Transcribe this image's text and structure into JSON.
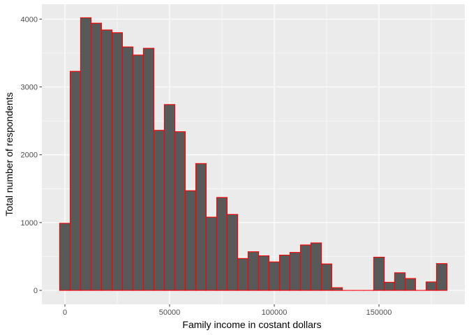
{
  "chart_data": {
    "type": "bar",
    "subtype": "histogram",
    "xlabel": "Family income in costant dollars",
    "ylabel": "Total number of respondents",
    "xlim": [
      -11000,
      191000
    ],
    "ylim": [
      -205,
      4220
    ],
    "x_ticks": [
      0,
      50000,
      100000,
      150000
    ],
    "x_tick_labels": [
      "0",
      "50000",
      "100000",
      "150000"
    ],
    "y_ticks": [
      0,
      1000,
      2000,
      3000,
      4000
    ],
    "y_tick_labels": [
      "0",
      "1000",
      "2000",
      "3000",
      "4000"
    ],
    "grid": true,
    "bin_width": 5000,
    "bins": [
      {
        "x0": -2500,
        "x1": 2500,
        "count": 990
      },
      {
        "x0": 2500,
        "x1": 7500,
        "count": 3230
      },
      {
        "x0": 7500,
        "x1": 12500,
        "count": 4020
      },
      {
        "x0": 12500,
        "x1": 17500,
        "count": 3940
      },
      {
        "x0": 17500,
        "x1": 22500,
        "count": 3840
      },
      {
        "x0": 22500,
        "x1": 27500,
        "count": 3800
      },
      {
        "x0": 27500,
        "x1": 32500,
        "count": 3590
      },
      {
        "x0": 32500,
        "x1": 37500,
        "count": 3470
      },
      {
        "x0": 37500,
        "x1": 42500,
        "count": 3570
      },
      {
        "x0": 42500,
        "x1": 47500,
        "count": 2360
      },
      {
        "x0": 47500,
        "x1": 52500,
        "count": 2740
      },
      {
        "x0": 52500,
        "x1": 57500,
        "count": 2340
      },
      {
        "x0": 57500,
        "x1": 62500,
        "count": 1470
      },
      {
        "x0": 62500,
        "x1": 67500,
        "count": 1870
      },
      {
        "x0": 67500,
        "x1": 72500,
        "count": 1080
      },
      {
        "x0": 72500,
        "x1": 77500,
        "count": 1370
      },
      {
        "x0": 77500,
        "x1": 82500,
        "count": 1120
      },
      {
        "x0": 82500,
        "x1": 87500,
        "count": 470
      },
      {
        "x0": 87500,
        "x1": 92500,
        "count": 570
      },
      {
        "x0": 92500,
        "x1": 97500,
        "count": 510
      },
      {
        "x0": 97500,
        "x1": 102500,
        "count": 420
      },
      {
        "x0": 102500,
        "x1": 107500,
        "count": 520
      },
      {
        "x0": 107500,
        "x1": 112500,
        "count": 560
      },
      {
        "x0": 112500,
        "x1": 117500,
        "count": 670
      },
      {
        "x0": 117500,
        "x1": 122500,
        "count": 700
      },
      {
        "x0": 122500,
        "x1": 127500,
        "count": 390
      },
      {
        "x0": 127500,
        "x1": 132500,
        "count": 40
      },
      {
        "x0": 132500,
        "x1": 137500,
        "count": 0
      },
      {
        "x0": 137500,
        "x1": 142500,
        "count": 0
      },
      {
        "x0": 142500,
        "x1": 147500,
        "count": 0
      },
      {
        "x0": 147500,
        "x1": 152500,
        "count": 490
      },
      {
        "x0": 152500,
        "x1": 157500,
        "count": 120
      },
      {
        "x0": 157500,
        "x1": 162500,
        "count": 260
      },
      {
        "x0": 162500,
        "x1": 167500,
        "count": 175
      },
      {
        "x0": 167500,
        "x1": 172500,
        "count": 0
      },
      {
        "x0": 172500,
        "x1": 177500,
        "count": 125
      },
      {
        "x0": 177500,
        "x1": 182500,
        "count": 395
      }
    ],
    "colors": {
      "panel_background": "#ebebeb",
      "grid_major": "#ffffff",
      "bar_fill": "#595959",
      "bar_outline": "#ff0000",
      "tick_text": "#4d4d4d",
      "tick_mark": "#333333",
      "title_text": "#000000"
    }
  }
}
